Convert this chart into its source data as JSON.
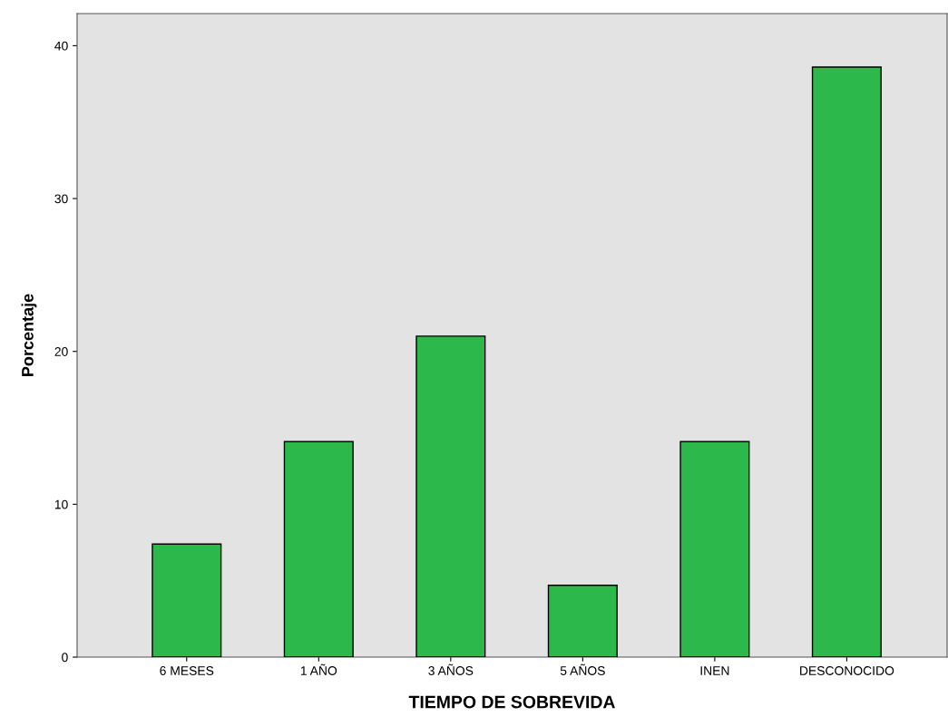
{
  "chart_data": {
    "type": "bar",
    "xlabel": "TIEMPO DE SOBREVIDA",
    "ylabel": "Porcentaje",
    "categories": [
      "6 MESES",
      "1 AÑO",
      "3 AÑOS",
      "5 AÑOS",
      "INEN",
      "DESCONOCIDO"
    ],
    "values": [
      7.4,
      14.1,
      21.0,
      4.7,
      14.1,
      38.6
    ],
    "color": "#2db84b",
    "ylim": [
      0,
      42.1
    ],
    "yticks": [
      0,
      10,
      20,
      30,
      40
    ],
    "grid": false
  }
}
